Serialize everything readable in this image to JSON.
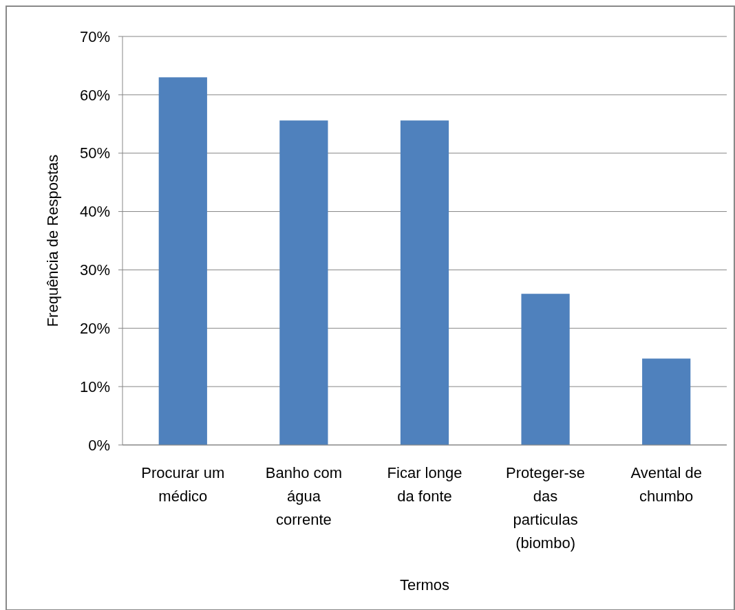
{
  "chart_data": {
    "type": "bar",
    "categories": [
      "Procurar um médico",
      "Banho com água corrente",
      "Ficar longe da fonte",
      "Proteger-se das particulas (biombo)",
      "Avental de chumbo"
    ],
    "values": [
      63,
      55.6,
      55.6,
      25.9,
      14.8
    ],
    "color": "#4f81bd",
    "xlabel": "Termos",
    "ylabel": "Frequência de Respostas",
    "ylim": [
      0,
      70
    ],
    "yticks": [
      {
        "value": 0,
        "label": "0%"
      },
      {
        "value": 10,
        "label": "10%"
      },
      {
        "value": 20,
        "label": "20%"
      },
      {
        "value": 30,
        "label": "30%"
      },
      {
        "value": 40,
        "label": "40%"
      },
      {
        "value": 50,
        "label": "50%"
      },
      {
        "value": 60,
        "label": "60%"
      },
      {
        "value": 70,
        "label": "70%"
      }
    ],
    "grid": "y"
  }
}
